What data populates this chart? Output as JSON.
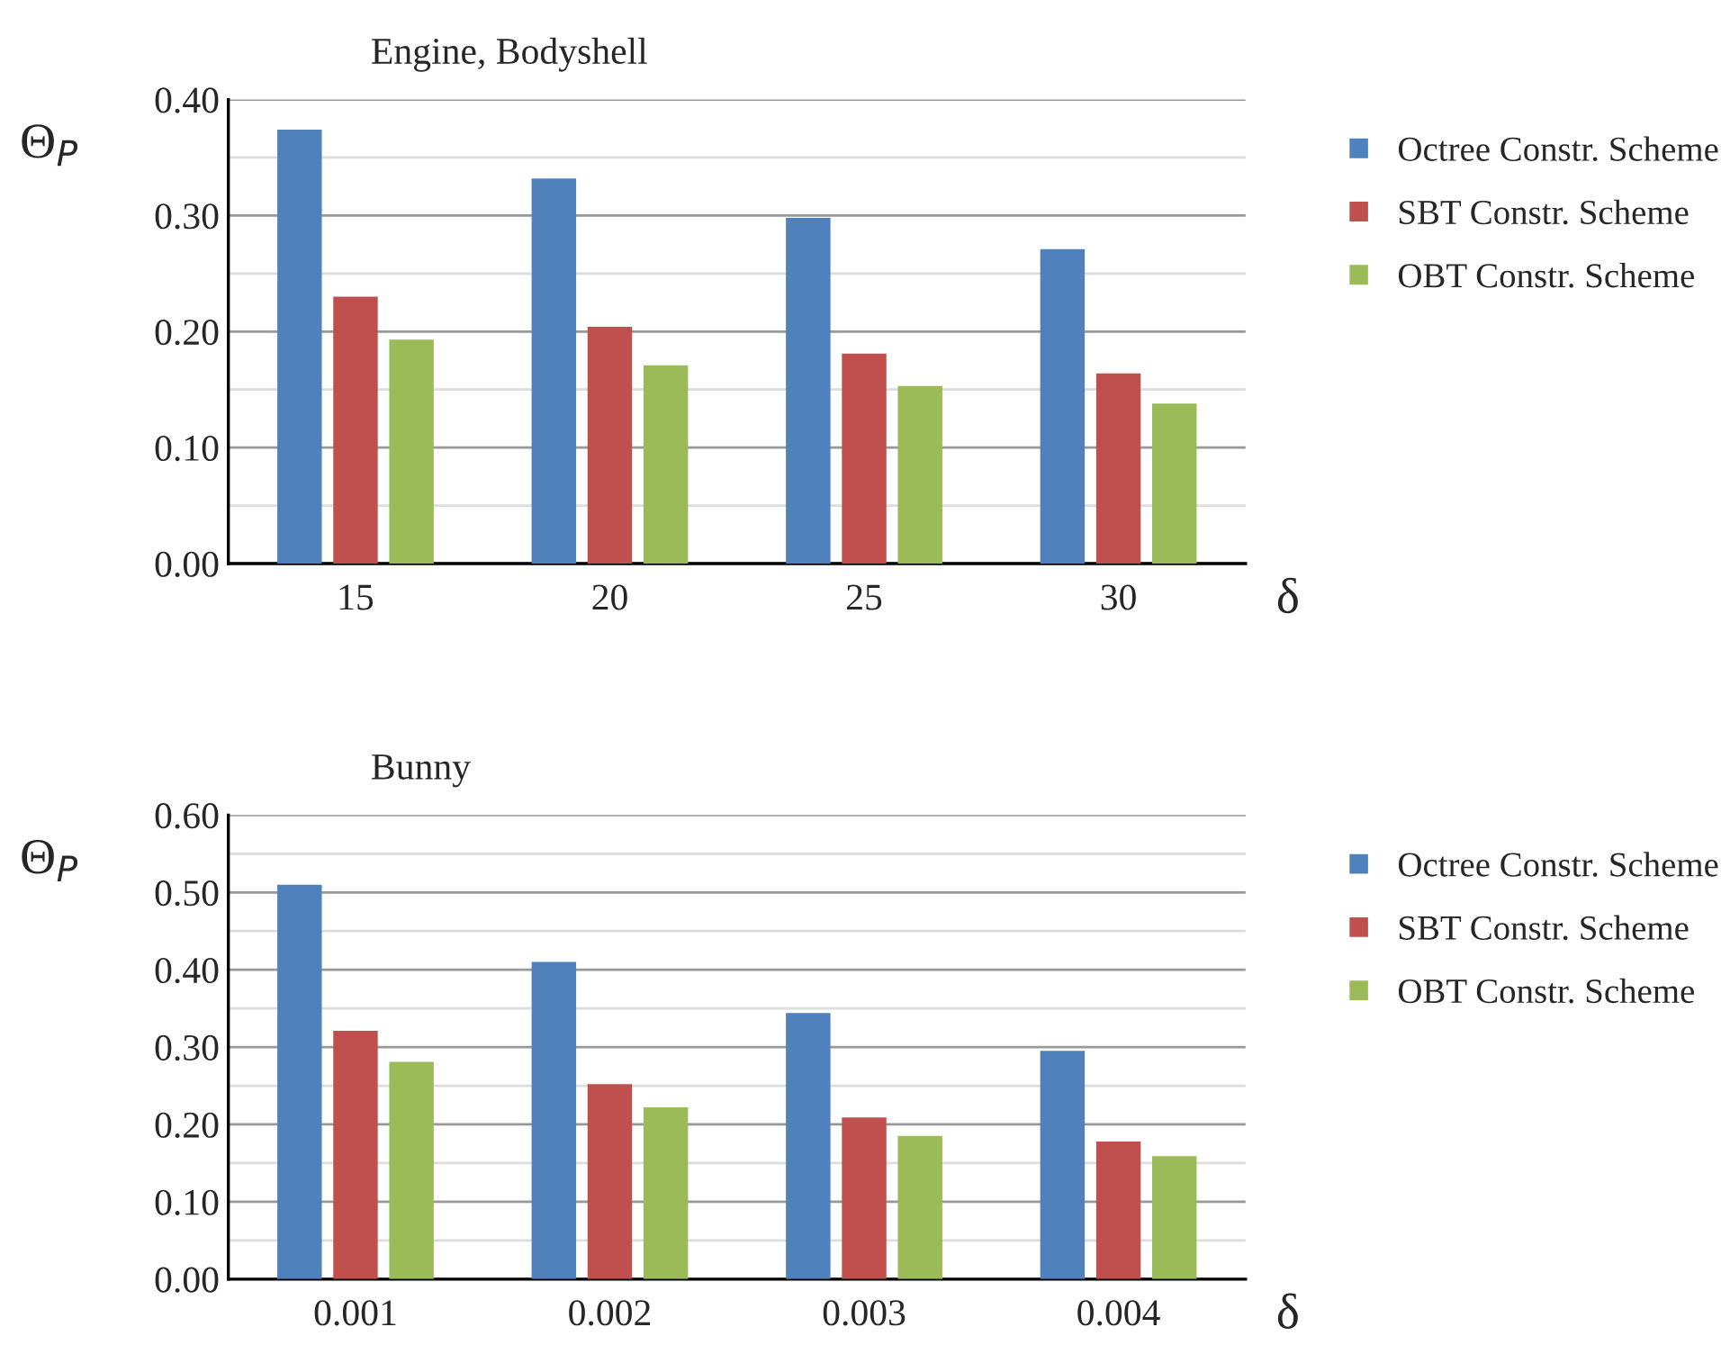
{
  "chart_data": [
    {
      "type": "bar",
      "title": "Engine, Bodyshell",
      "xlabel": "δ",
      "ylabel": "Θ$_{P}$",
      "categories": [
        "15",
        "20",
        "25",
        "30"
      ],
      "series": [
        {
          "name": "Octree Constr. Scheme",
          "color": "#4f81bd",
          "values": [
            0.374,
            0.332,
            0.298,
            0.271
          ]
        },
        {
          "name": "SBT Constr. Scheme",
          "color": "#c0504d",
          "values": [
            0.23,
            0.204,
            0.181,
            0.164
          ]
        },
        {
          "name": "OBT Constr. Scheme",
          "color": "#9bbb59",
          "values": [
            0.193,
            0.171,
            0.153,
            0.138
          ]
        }
      ],
      "ylim": [
        0,
        0.4
      ],
      "yticks": [
        {
          "value": 0,
          "label": "0.00"
        },
        {
          "value": 0.05,
          "label": null
        },
        {
          "value": 0.1,
          "label": "0.10"
        },
        {
          "value": 0.15,
          "label": null
        },
        {
          "value": 0.2,
          "label": "0.20"
        },
        {
          "value": 0.25,
          "label": null
        },
        {
          "value": 0.3,
          "label": "0.30"
        },
        {
          "value": 0.35,
          "label": null
        },
        {
          "value": 0.4,
          "label": "0.40"
        }
      ],
      "grid": "y",
      "legend": "right"
    },
    {
      "type": "bar",
      "title": "Bunny",
      "xlabel": "δ",
      "ylabel": "Θ$_{P}$",
      "categories": [
        "0.001",
        "0.002",
        "0.003",
        "0.004"
      ],
      "series": [
        {
          "name": "Octree Constr. Scheme",
          "color": "#4f81bd",
          "values": [
            0.51,
            0.41,
            0.344,
            0.295
          ]
        },
        {
          "name": "SBT Constr. Scheme",
          "color": "#c0504d",
          "values": [
            0.321,
            0.252,
            0.209,
            0.178
          ]
        },
        {
          "name": "OBT Constr. Scheme",
          "color": "#9bbb59",
          "values": [
            0.281,
            0.222,
            0.185,
            0.159
          ]
        }
      ],
      "ylim": [
        0,
        0.6
      ],
      "yticks": [
        {
          "value": 0,
          "label": "0.00"
        },
        {
          "value": 0.05,
          "label": null
        },
        {
          "value": 0.1,
          "label": "0.10"
        },
        {
          "value": 0.15,
          "label": null
        },
        {
          "value": 0.2,
          "label": "0.20"
        },
        {
          "value": 0.25,
          "label": null
        },
        {
          "value": 0.3,
          "label": "0.30"
        },
        {
          "value": 0.35,
          "label": null
        },
        {
          "value": 0.4,
          "label": "0.40"
        },
        {
          "value": 0.45,
          "label": null
        },
        {
          "value": 0.5,
          "label": "0.50"
        },
        {
          "value": 0.55,
          "label": null
        },
        {
          "value": 0.6,
          "label": "0.60"
        }
      ],
      "grid": "y",
      "legend": "right"
    }
  ]
}
